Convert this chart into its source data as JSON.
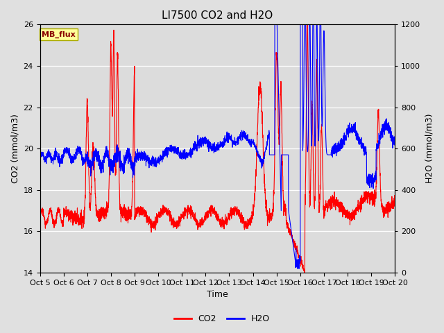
{
  "title": "LI7500 CO2 and H2O",
  "xlabel": "Time",
  "ylabel_left": "CO2 (mmol/m3)",
  "ylabel_right": "H2O (mmol/m3)",
  "ylim_left": [
    14,
    26
  ],
  "ylim_right": [
    0,
    1200
  ],
  "yticks_left": [
    14,
    16,
    18,
    20,
    22,
    24,
    26
  ],
  "yticks_right": [
    0,
    200,
    400,
    600,
    800,
    1000,
    1200
  ],
  "xtick_labels": [
    "Oct 5",
    "Oct 6",
    "Oct 7",
    "Oct 8",
    "Oct 9",
    "Oct 10",
    "Oct 11",
    "Oct 12",
    "Oct 13",
    "Oct 14",
    "Oct 15",
    "Oct 16",
    "Oct 17",
    "Oct 18",
    "Oct 19",
    "Oct 20"
  ],
  "co2_color": "#FF0000",
  "h2o_color": "#0000FF",
  "fig_facecolor": "#E0E0E0",
  "ax_facecolor": "#DCDCDC",
  "grid_color": "#FFFFFF",
  "label_box_text": "MB_flux",
  "label_box_facecolor": "#FFFF99",
  "label_box_edgecolor": "#AAAA00",
  "label_text_color": "#880000",
  "legend_co2": "CO2",
  "legend_h2o": "H2O",
  "line_width": 0.8,
  "title_fontsize": 11,
  "axis_label_fontsize": 9,
  "tick_fontsize": 8
}
